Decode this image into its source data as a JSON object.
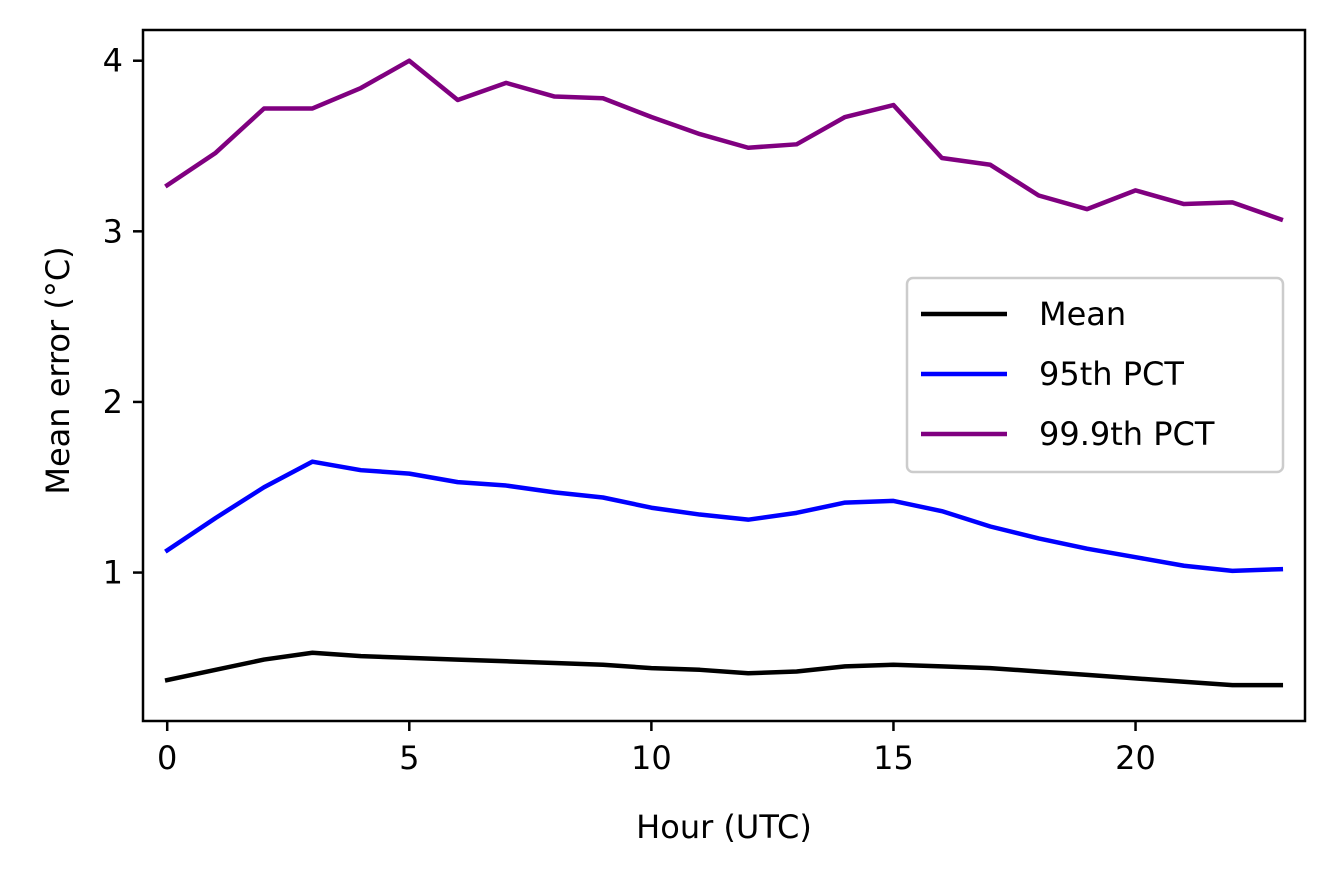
{
  "chart_data": {
    "type": "line",
    "title": "",
    "xlabel": "Hour (UTC)",
    "ylabel": "Mean error (°C)",
    "xlim": [
      -0.5,
      23.5
    ],
    "ylim": [
      0.13,
      4.18
    ],
    "xticks": [
      0,
      5,
      10,
      15,
      20
    ],
    "yticks": [
      1,
      2,
      3,
      4
    ],
    "grid": false,
    "legend_position": "center-right",
    "x": [
      0,
      1,
      2,
      3,
      4,
      5,
      6,
      7,
      8,
      9,
      10,
      11,
      12,
      13,
      14,
      15,
      16,
      17,
      18,
      19,
      20,
      21,
      22,
      23
    ],
    "series": [
      {
        "name": "Mean",
        "color": "#000000",
        "values": [
          0.37,
          0.43,
          0.49,
          0.53,
          0.51,
          0.5,
          0.49,
          0.48,
          0.47,
          0.46,
          0.44,
          0.43,
          0.41,
          0.42,
          0.45,
          0.46,
          0.45,
          0.44,
          0.42,
          0.4,
          0.38,
          0.36,
          0.34,
          0.34
        ]
      },
      {
        "name": "95th PCT",
        "color": "#0000ff",
        "values": [
          1.13,
          1.32,
          1.5,
          1.65,
          1.6,
          1.58,
          1.53,
          1.51,
          1.47,
          1.44,
          1.38,
          1.34,
          1.31,
          1.35,
          1.41,
          1.42,
          1.36,
          1.27,
          1.2,
          1.14,
          1.09,
          1.04,
          1.01,
          1.02
        ]
      },
      {
        "name": "99.9th PCT",
        "color": "#800080",
        "values": [
          3.27,
          3.46,
          3.72,
          3.72,
          3.84,
          4.0,
          3.77,
          3.87,
          3.79,
          3.78,
          3.67,
          3.57,
          3.49,
          3.51,
          3.67,
          3.74,
          3.43,
          3.39,
          3.21,
          3.13,
          3.24,
          3.16,
          3.17,
          3.07
        ]
      }
    ]
  }
}
